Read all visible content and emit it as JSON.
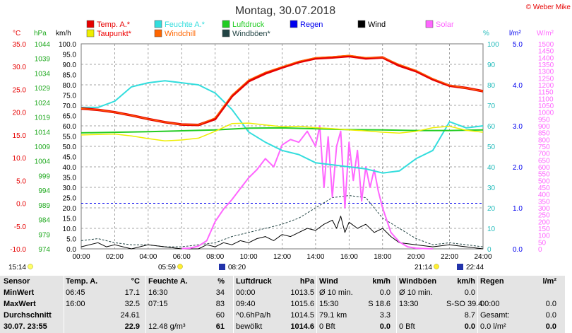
{
  "title": "Montag, 30.07.2018",
  "copyright": "© Weber Mike",
  "legend": [
    {
      "label": "Temp. A.*",
      "color": "#e60000"
    },
    {
      "label": "Feuchte A.*",
      "color": "#33dddd"
    },
    {
      "label": "Luftdruck",
      "color": "#22cc22"
    },
    {
      "label": "Regen",
      "color": "#0000ee"
    },
    {
      "label": "Wind",
      "color": "#000000"
    },
    {
      "label": "Solar",
      "color": "#ff66ff"
    },
    {
      "label": "Taupunkt*",
      "color": "#eeee00"
    },
    {
      "label": "Windchill",
      "color": "#ff6600"
    },
    {
      "label": "Windböen*",
      "color": "#224444"
    }
  ],
  "axis_units": {
    "temp": "°C",
    "pressure": "hPa",
    "speed": "km/h",
    "humidity": "%",
    "rain": "l/m²",
    "solar": "W/m²"
  },
  "temp_ticks": [
    "35.0",
    "30.0",
    "25.0",
    "20.0",
    "15.0",
    "10.0",
    "5.0",
    "0.0",
    "-5.0",
    "-10.0"
  ],
  "pressure_ticks": [
    "1044",
    "1039",
    "1034",
    "1029",
    "1024",
    "1019",
    "1014",
    "1009",
    "1004",
    "999",
    "994",
    "989",
    "984",
    "979",
    "974"
  ],
  "speed_ticks": [
    "100.0",
    "95.0",
    "90.0",
    "85.0",
    "80.0",
    "75.0",
    "70.0",
    "65.0",
    "60.0",
    "55.0",
    "50.0",
    "45.0",
    "40.0",
    "35.0",
    "30.0",
    "25.0",
    "20.0",
    "15.0",
    "10.0",
    "5.0",
    "0.0"
  ],
  "humidity_ticks": [
    "100",
    "90",
    "80",
    "70",
    "60",
    "50",
    "40",
    "30",
    "20",
    "10",
    "0"
  ],
  "rain_ticks": [
    "5.0",
    "4.0",
    "3.0",
    "2.0",
    "1.0",
    "0.0"
  ],
  "solar_ticks": [
    "1500",
    "1450",
    "1400",
    "1350",
    "1300",
    "1250",
    "1200",
    "1150",
    "1100",
    "1050",
    "1000",
    "950",
    "900",
    "850",
    "800",
    "750",
    "700",
    "650",
    "600",
    "550",
    "500",
    "450",
    "400",
    "350",
    "300",
    "250",
    "200",
    "150",
    "100",
    "50",
    "0"
  ],
  "x_ticks": [
    "00:00",
    "02:00",
    "04:00",
    "06:00",
    "08:00",
    "10:00",
    "12:00",
    "14:00",
    "16:00",
    "18:00",
    "20:00",
    "22:00",
    "24:00"
  ],
  "sun_times": {
    "moonset": "15:14",
    "sunrise": "05:59",
    "civil_dawn": "08:20",
    "sunset": "21:14",
    "moonrise": "22:44"
  },
  "chart_data": {
    "type": "line",
    "x_unit": "hour",
    "ylim_temp": [
      -10,
      35
    ],
    "ylim_pressure": [
      974,
      1044
    ],
    "ylim_speed": [
      0,
      100
    ],
    "ylim_humidity": [
      0,
      100
    ],
    "ylim_rain": [
      0,
      5
    ],
    "ylim_solar": [
      0,
      1500
    ],
    "series": [
      {
        "name": "Temp. A.*",
        "color": "#e60000",
        "axis": "temp",
        "width": 3.5,
        "x": [
          0,
          1,
          2,
          3,
          4,
          5,
          6,
          7,
          8,
          9,
          10,
          11,
          12,
          13,
          14,
          15,
          16,
          17,
          18,
          19,
          20,
          21,
          22,
          23,
          24
        ],
        "y": [
          20.8,
          20.5,
          20.0,
          19.3,
          18.5,
          17.8,
          17.3,
          17.2,
          18.5,
          23.5,
          26.8,
          28.5,
          29.8,
          31.0,
          31.8,
          32.0,
          32.3,
          31.8,
          32.0,
          30.2,
          29.0,
          27.2,
          25.8,
          25.3,
          24.6
        ]
      },
      {
        "name": "Windchill",
        "color": "#ff6600",
        "axis": "temp",
        "width": 1.2,
        "x": [
          0,
          1,
          2,
          3,
          4,
          5,
          6,
          7,
          8,
          9,
          10,
          11,
          12,
          13,
          14,
          15,
          16,
          17,
          18,
          19,
          20,
          21,
          22,
          23,
          24
        ],
        "y": [
          20.8,
          20.5,
          20.0,
          19.3,
          18.5,
          17.8,
          17.3,
          17.2,
          18.8,
          23.8,
          27.1,
          28.8,
          30.0,
          31.2,
          32.0,
          32.2,
          32.5,
          32.0,
          32.1,
          30.5,
          29.2,
          27.4,
          25.9,
          25.3,
          24.6
        ]
      },
      {
        "name": "Feuchte A.*",
        "color": "#33dddd",
        "axis": "humidity",
        "width": 2,
        "x": [
          0,
          1,
          2,
          3,
          4,
          5,
          6,
          7,
          8,
          9,
          10,
          11,
          12,
          13,
          14,
          15,
          16,
          17,
          18,
          19,
          20,
          21,
          22,
          23,
          24
        ],
        "y": [
          69,
          69,
          72,
          79,
          81,
          82,
          81,
          80,
          76,
          68,
          57,
          52,
          48,
          46,
          42,
          41,
          40,
          39,
          37,
          38,
          44,
          48,
          62,
          59,
          60
        ]
      },
      {
        "name": "Taupunkt*",
        "color": "#eeee00",
        "axis": "temp",
        "width": 1.5,
        "x": [
          0,
          1,
          2,
          3,
          4,
          5,
          6,
          7,
          8,
          9,
          10,
          11,
          12,
          13,
          14,
          15,
          16,
          17,
          18,
          19,
          20,
          21,
          22,
          23,
          24
        ],
        "y": [
          15.0,
          15.1,
          15.2,
          14.8,
          14.2,
          13.7,
          13.9,
          14.3,
          15.8,
          17.5,
          17.6,
          17.2,
          16.8,
          16.9,
          16.6,
          16.4,
          16.1,
          15.9,
          15.6,
          15.4,
          15.8,
          16.6,
          16.9,
          16.0,
          15.6
        ]
      },
      {
        "name": "Luftdruck",
        "color": "#22cc22",
        "axis": "pressure",
        "width": 2,
        "x": [
          0,
          2,
          4,
          6,
          8,
          10,
          12,
          14,
          16,
          18,
          20,
          22,
          24
        ],
        "y": [
          1013.6,
          1013.8,
          1014.0,
          1014.3,
          1014.6,
          1015.2,
          1015.3,
          1015.0,
          1014.7,
          1014.6,
          1014.4,
          1014.4,
          1014.6
        ]
      },
      {
        "name": "Solar",
        "color": "#ff66ff",
        "axis": "solar",
        "width": 2,
        "x": [
          6,
          6.5,
          7,
          7.5,
          8,
          8.5,
          9,
          9.5,
          10,
          10.5,
          11,
          11.5,
          12,
          12.5,
          13,
          13.5,
          14,
          14.25,
          14.5,
          14.75,
          15,
          15.25,
          15.5,
          15.75,
          16,
          16.25,
          16.5,
          16.75,
          17,
          17.25,
          17.5,
          17.75,
          18,
          18.5,
          19,
          19.5,
          20,
          20.5,
          21
        ],
        "y": [
          2,
          5,
          20,
          60,
          200,
          290,
          360,
          440,
          520,
          580,
          660,
          600,
          760,
          800,
          780,
          860,
          750,
          900,
          450,
          820,
          380,
          750,
          860,
          300,
          780,
          500,
          720,
          350,
          600,
          450,
          580,
          420,
          300,
          120,
          50,
          15,
          5,
          2,
          0
        ]
      },
      {
        "name": "Windböen*",
        "color": "#224444",
        "axis": "speed",
        "width": 1,
        "dash": "3,2",
        "x": [
          0,
          1,
          2,
          3,
          4,
          5,
          6,
          7,
          8,
          9,
          10,
          11,
          12,
          13,
          14,
          15,
          16,
          17,
          18,
          19,
          20,
          21,
          22,
          23,
          24
        ],
        "y": [
          4,
          5,
          3,
          2,
          2,
          1,
          1,
          2,
          3,
          6,
          8,
          10,
          12,
          15,
          20,
          25,
          26,
          25,
          15,
          10,
          5,
          2,
          3,
          2,
          1
        ]
      },
      {
        "name": "Wind",
        "color": "#000000",
        "axis": "speed",
        "width": 1,
        "x": [
          0,
          1,
          1.5,
          2,
          3,
          4,
          5,
          6,
          7,
          7.5,
          8,
          8.5,
          9,
          9.5,
          10,
          10.5,
          11,
          11.5,
          12,
          12.5,
          13,
          13.5,
          14,
          14.5,
          15,
          15.25,
          15.5,
          15.75,
          16,
          16.5,
          17,
          17.5,
          18,
          18.5,
          19,
          20,
          21,
          22,
          23,
          24
        ],
        "y": [
          1,
          3,
          1,
          2,
          0,
          2,
          1,
          0,
          0,
          2,
          1,
          3,
          2,
          4,
          3,
          5,
          6,
          4,
          7,
          6,
          8,
          10,
          9,
          12,
          14,
          10,
          16,
          8,
          13,
          10,
          12,
          8,
          10,
          6,
          3,
          2,
          1,
          2,
          1,
          0
        ]
      }
    ],
    "reference_line": {
      "axis": "temp",
      "y": 0,
      "color": "#0000ee",
      "dash": "3,3"
    }
  },
  "stats": {
    "headers": [
      "Sensor",
      "Temp. A.",
      "°C",
      "Feuchte A.",
      "%",
      "Luftdruck",
      "hPa",
      "Wind",
      "km/h",
      "Windböen",
      "km/h",
      "Regen",
      "l/m²"
    ],
    "rows": [
      {
        "label": "MinWert",
        "temp_time": "06:45",
        "temp_val": "17.1",
        "hum_time": "16:30",
        "hum_val": "34",
        "press_time": "00:00",
        "press_val": "1013.5",
        "wind_label": "Ø 10 min.",
        "wind_val": "0.0",
        "gust_label": "Ø 10 min.",
        "gust_val": "0.0",
        "rain_label": "",
        "rain_val": ""
      },
      {
        "label": "MaxWert",
        "temp_time": "16:00",
        "temp_val": "32.5",
        "hum_time": "07:15",
        "hum_val": "83",
        "press_time": "09:40",
        "press_val": "1015.6",
        "wind_label": "15:30",
        "wind_val": "S 18.6",
        "gust_label": "13:30",
        "gust_val": "S-SO 39.4",
        "rain_label": "00:00",
        "rain_val": "0.0"
      },
      {
        "label": "Durchschnitt",
        "temp_time": "",
        "temp_val": "24.61",
        "hum_time": "",
        "hum_val": "60",
        "press_time": "^0.6hPa/h",
        "press_val": "1014.5",
        "wind_label": "79.1 km",
        "wind_val": "3.3",
        "gust_label": "",
        "gust_val": "8.7",
        "rain_label": "Gesamt:",
        "rain_val": "0.0"
      },
      {
        "label": "30.07. 23:55",
        "temp_time": "",
        "temp_val": "22.9",
        "hum_time": "12.48 g/m³",
        "hum_val": "61",
        "press_time": "bewölkt",
        "press_val": "1014.6",
        "wind_label": "0 Bft",
        "wind_val": "0.0",
        "gust_label": "0 Bft",
        "gust_val": "0.0",
        "rain_label": "0.0 l/m²",
        "rain_val": "0.0"
      }
    ]
  }
}
